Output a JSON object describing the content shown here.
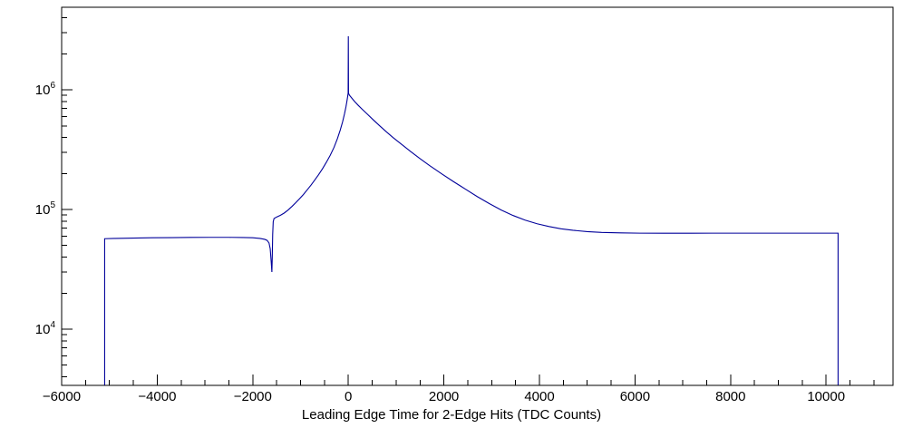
{
  "chart_data": {
    "type": "line",
    "title": "",
    "xlabel": "Leading Edge Time for 2-Edge Hits (TDC Counts)",
    "ylabel": "",
    "xlim": [
      -6000,
      11400
    ],
    "ylim_log10": [
      3.53,
      6.69
    ],
    "x_tick_values": [
      -6000,
      -4000,
      -2000,
      0,
      2000,
      4000,
      6000,
      8000,
      10000
    ],
    "x_tick_labels": [
      "−6000",
      "−4000",
      "−2000",
      "0",
      "2000",
      "4000",
      "6000",
      "8000",
      "10000"
    ],
    "x_minor_tick_step": 500,
    "y_tick_exponents": [
      4,
      5,
      6
    ],
    "y_scale": "log",
    "grid": false,
    "legend": null,
    "line_color": "#00009a",
    "frame_color": "#000000",
    "background_color": "#ffffff",
    "points": [
      [
        -5100,
        3400
      ],
      [
        -5100,
        57000
      ],
      [
        -4900,
        57300
      ],
      [
        -4500,
        57700
      ],
      [
        -4100,
        58000
      ],
      [
        -3700,
        58200
      ],
      [
        -3300,
        58400
      ],
      [
        -2900,
        58500
      ],
      [
        -2500,
        58500
      ],
      [
        -2200,
        58300
      ],
      [
        -2000,
        58000
      ],
      [
        -1850,
        57300
      ],
      [
        -1750,
        56300
      ],
      [
        -1700,
        55200
      ],
      [
        -1660,
        52500
      ],
      [
        -1635,
        47000
      ],
      [
        -1615,
        37000
      ],
      [
        -1600,
        30000
      ],
      [
        -1592,
        40000
      ],
      [
        -1583,
        62000
      ],
      [
        -1572,
        79000
      ],
      [
        -1555,
        84000
      ],
      [
        -1500,
        86500
      ],
      [
        -1420,
        89500
      ],
      [
        -1340,
        93500
      ],
      [
        -1260,
        99000
      ],
      [
        -1180,
        106000
      ],
      [
        -1100,
        114000
      ],
      [
        -1020,
        123000
      ],
      [
        -940,
        133500
      ],
      [
        -860,
        146000
      ],
      [
        -780,
        160000
      ],
      [
        -700,
        177000
      ],
      [
        -620,
        196000
      ],
      [
        -540,
        219000
      ],
      [
        -460,
        248000
      ],
      [
        -380,
        283000
      ],
      [
        -300,
        330000
      ],
      [
        -230,
        390000
      ],
      [
        -170,
        460000
      ],
      [
        -120,
        540000
      ],
      [
        -80,
        630000
      ],
      [
        -50,
        720000
      ],
      [
        -28,
        810000
      ],
      [
        -12,
        890000
      ],
      [
        -4,
        940000
      ],
      [
        0,
        2800000
      ],
      [
        4,
        935000
      ],
      [
        25,
        900000
      ],
      [
        70,
        855000
      ],
      [
        130,
        800000
      ],
      [
        210,
        740000
      ],
      [
        300,
        682000
      ],
      [
        400,
        625000
      ],
      [
        520,
        562000
      ],
      [
        650,
        503000
      ],
      [
        800,
        444000
      ],
      [
        950,
        395000
      ],
      [
        1100,
        354000
      ],
      [
        1300,
        306000
      ],
      [
        1500,
        266000
      ],
      [
        1700,
        233000
      ],
      [
        1950,
        199000
      ],
      [
        2200,
        171000
      ],
      [
        2450,
        148000
      ],
      [
        2700,
        128000
      ],
      [
        2950,
        112000
      ],
      [
        3200,
        99000
      ],
      [
        3450,
        89000
      ],
      [
        3700,
        81500
      ],
      [
        3950,
        76000
      ],
      [
        4200,
        72000
      ],
      [
        4450,
        69000
      ],
      [
        4700,
        67000
      ],
      [
        5000,
        65300
      ],
      [
        5300,
        64300
      ],
      [
        5700,
        63700
      ],
      [
        6100,
        63400
      ],
      [
        6600,
        63300
      ],
      [
        7100,
        63300
      ],
      [
        7600,
        63400
      ],
      [
        8100,
        63400
      ],
      [
        8600,
        63400
      ],
      [
        9100,
        63400
      ],
      [
        9600,
        63400
      ],
      [
        10100,
        63400
      ],
      [
        10250,
        63400
      ],
      [
        10250,
        3400
      ]
    ]
  }
}
